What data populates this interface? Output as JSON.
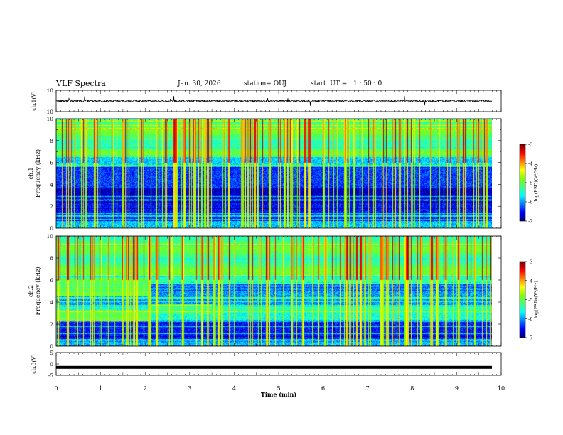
{
  "header": {
    "title": "VLF Spectra",
    "date": "Jan. 30, 2026",
    "station": "station= OUJ",
    "start": "start  UT =   1 : 50 : 0"
  },
  "chart_data": [
    {
      "type": "line",
      "panel": "ch1-waveform",
      "ylabel": "ch.1(V)",
      "ylim": [
        -10,
        10
      ],
      "yticks": [
        "10",
        "-10"
      ],
      "xlim": [
        0,
        10
      ],
      "baseline": 0
    },
    {
      "type": "heatmap",
      "panel": "ch1-spectrogram",
      "ylabel_line1": "ch.1",
      "ylabel_line2": "Frequency (kHz)",
      "ylim": [
        0,
        10
      ],
      "yticks": [
        "0",
        "2",
        "4",
        "6",
        "8",
        "10"
      ],
      "xlim": [
        0,
        10
      ],
      "colorbar": {
        "label": "log(PSD)(V²/Hz)",
        "range": [
          -7,
          -3
        ],
        "ticks": [
          "-3",
          "-4",
          "-5",
          "-6",
          "-7"
        ]
      }
    },
    {
      "type": "heatmap",
      "panel": "ch2-spectrogram",
      "ylabel_line1": "ch.2",
      "ylabel_line2": "Frequency (kHz)",
      "ylim": [
        0,
        10
      ],
      "yticks": [
        "0",
        "2",
        "4",
        "6",
        "8",
        "10"
      ],
      "xlim": [
        0,
        10
      ],
      "colorbar": {
        "label": "log(PSD)(V²/Hz)",
        "range": [
          -7,
          -3
        ],
        "ticks": [
          "-3",
          "-4",
          "-5",
          "-6",
          "-7"
        ]
      }
    },
    {
      "type": "line",
      "panel": "ch3-waveform",
      "ylabel": "ch.3(V)",
      "ylim": [
        -5,
        5
      ],
      "yticks": [
        "5",
        "0",
        "-5"
      ],
      "xlim": [
        0,
        10
      ],
      "baseline": -1.5
    }
  ],
  "xaxis": {
    "label": "Time  (min)",
    "range": [
      0,
      10
    ],
    "ticks": [
      "0",
      "1",
      "2",
      "3",
      "4",
      "5",
      "6",
      "7",
      "8",
      "9",
      "10"
    ]
  },
  "colors": {
    "colormap": [
      "#00007a",
      "#0000ff",
      "#0080ff",
      "#00ffff",
      "#40ff80",
      "#80ff00",
      "#ffff00",
      "#ff8000",
      "#ff0000",
      "#7a0000"
    ]
  }
}
